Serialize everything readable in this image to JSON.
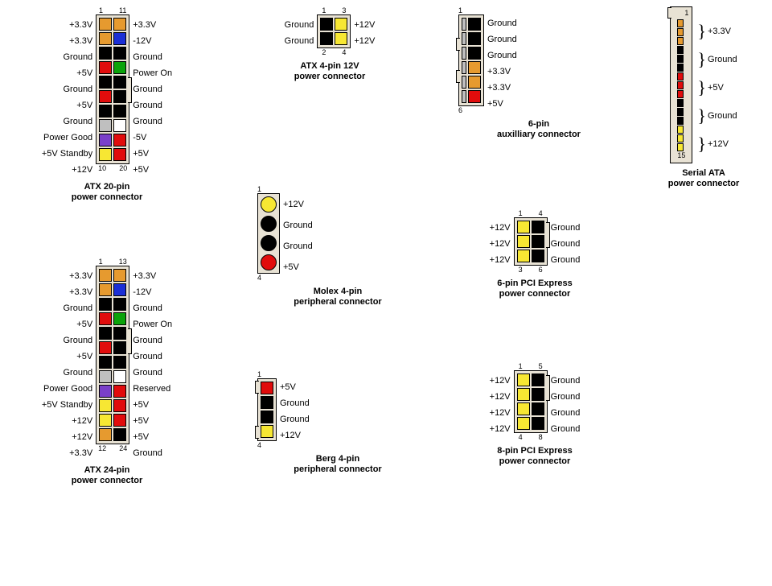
{
  "colors": {
    "orange": "#e69a2f",
    "blue": "#1b2fd6",
    "black": "#000000",
    "red": "#e10c0c",
    "green": "#0aa30a",
    "gray": "#bfbfbf",
    "white": "#ffffff",
    "purple": "#7a3fc9",
    "yellow": "#f7e733",
    "housing": "#e8e2d4"
  },
  "atx20": {
    "title": "ATX 20-pin\npower connector",
    "topNums": [
      "1",
      "11"
    ],
    "botNums": [
      "10",
      "20"
    ],
    "left": [
      "+3.3V",
      "+3.3V",
      "Ground",
      "+5V",
      "Ground",
      "+5V",
      "Ground",
      "Power Good",
      "+5V Standby",
      "+12V"
    ],
    "right": [
      "+3.3V",
      "-12V",
      "Ground",
      "Power On",
      "Ground",
      "Ground",
      "Ground",
      "-5V",
      "+5V",
      "+5V"
    ],
    "leftColors": [
      "orange",
      "orange",
      "black",
      "red",
      "black",
      "red",
      "black",
      "gray",
      "purple",
      "yellow"
    ],
    "rightColors": [
      "orange",
      "blue",
      "black",
      "green",
      "black",
      "black",
      "black",
      "white",
      "red",
      "red"
    ],
    "notchRows": [
      4,
      5
    ]
  },
  "atx24": {
    "title": "ATX 24-pin\npower connector",
    "topNums": [
      "1",
      "13"
    ],
    "botNums": [
      "12",
      "24"
    ],
    "left": [
      "+3.3V",
      "+3.3V",
      "Ground",
      "+5V",
      "Ground",
      "+5V",
      "Ground",
      "Power Good",
      "+5V Standby",
      "+12V",
      "+12V",
      "+3.3V"
    ],
    "right": [
      "+3.3V",
      "-12V",
      "Ground",
      "Power On",
      "Ground",
      "Ground",
      "Ground",
      "Reserved",
      "+5V",
      "+5V",
      "+5V",
      "Ground"
    ],
    "leftColors": [
      "orange",
      "orange",
      "black",
      "red",
      "black",
      "red",
      "black",
      "gray",
      "purple",
      "yellow",
      "yellow",
      "orange"
    ],
    "rightColors": [
      "orange",
      "blue",
      "black",
      "green",
      "black",
      "black",
      "black",
      "white",
      "red",
      "red",
      "red",
      "black"
    ],
    "notchRows": [
      4,
      5
    ]
  },
  "atx4": {
    "title": "ATX 4-pin 12V\npower connector",
    "topNums": [
      "1",
      "3"
    ],
    "botNums": [
      "2",
      "4"
    ],
    "left": [
      "Ground",
      "Ground"
    ],
    "right": [
      "+12V",
      "+12V"
    ],
    "leftColors": [
      "black",
      "black"
    ],
    "rightColors": [
      "yellow",
      "yellow"
    ]
  },
  "molex": {
    "title": "Molex 4-pin\nperipheral connector",
    "topNum": "1",
    "botNum": "4",
    "labels": [
      "+12V",
      "Ground",
      "Ground",
      "+5V"
    ],
    "colors": [
      "yellow",
      "black",
      "black",
      "red"
    ],
    "shape": "round"
  },
  "berg": {
    "title": "Berg 4-pin\nperipheral connector",
    "topNum": "1",
    "botNum": "4",
    "labels": [
      "+5V",
      "Ground",
      "Ground",
      "+12V"
    ],
    "colors": [
      "red",
      "black",
      "black",
      "yellow"
    ],
    "tabs": true
  },
  "aux6": {
    "title": "6-pin\nauxilliary connector",
    "topNum": "1",
    "botNum": "6",
    "labels": [
      "Ground",
      "Ground",
      "Ground",
      "+3.3V",
      "+3.3V",
      "+5V"
    ],
    "colors": [
      "black",
      "black",
      "black",
      "orange",
      "orange",
      "red"
    ],
    "bars": true
  },
  "pcie6": {
    "title": "6-pin PCI Express\npower connector",
    "topNums": [
      "1",
      "4"
    ],
    "botNums": [
      "3",
      "6"
    ],
    "left": [
      "+12V",
      "+12V",
      "+12V"
    ],
    "right": [
      "Ground",
      "Ground",
      "Ground"
    ],
    "leftColors": [
      "yellow",
      "yellow",
      "yellow"
    ],
    "rightColors": [
      "black",
      "black",
      "black"
    ],
    "notchRows": [
      0,
      1
    ]
  },
  "pcie8": {
    "title": "8-pin PCI Express\npower connector",
    "topNums": [
      "1",
      "5"
    ],
    "botNums": [
      "4",
      "8"
    ],
    "left": [
      "+12V",
      "+12V",
      "+12V",
      "+12V"
    ],
    "right": [
      "Ground",
      "Ground",
      "Ground",
      "Ground"
    ],
    "leftColors": [
      "yellow",
      "yellow",
      "yellow",
      "yellow"
    ],
    "rightColors": [
      "black",
      "black",
      "black",
      "black"
    ],
    "notchRows": [
      0,
      1
    ]
  },
  "sata": {
    "title": "Serial ATA\npower connector",
    "topNum": "1",
    "botNum": "15",
    "groups": [
      {
        "label": "+3.3V",
        "colors": [
          "orange",
          "orange",
          "orange"
        ]
      },
      {
        "label": "Ground",
        "colors": [
          "black",
          "black",
          "black"
        ]
      },
      {
        "label": "+5V",
        "colors": [
          "red",
          "red",
          "red"
        ]
      },
      {
        "label": "Ground",
        "colors": [
          "black",
          "black",
          "black"
        ]
      },
      {
        "label": "+12V",
        "colors": [
          "yellow",
          "yellow",
          "yellow"
        ]
      }
    ]
  }
}
